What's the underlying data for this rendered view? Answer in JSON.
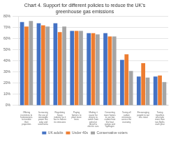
{
  "chart_data": {
    "type": "bar",
    "title": "Chart 4. Support for different policies to reduce the UK’s\ngreenhouse gas emissions",
    "categories": [
      "Offering\nincentives to\nhomeowners\nto insulate\ntheir\nproperties",
      "Increasing\nthe use of\nrenewable\npower like\nsolar and\nwind farms",
      "Regulating\nheavy\nindustry so it\nhas to reduce\nits emissions",
      "Paying\nfarmers to\nplant more\ntrees",
      "Making it\neasier for\ndrivers to\nswitch from\npetrol or\ndiesel to\nelectric cars",
      "Converting\nmore homes\nto use low\ncarbon heat\nlike heat\npumps and\nhydrogen",
      "Taxing all\ncarbon\nemissions\nacross the\neconomy",
      "Encouraging\npeople to eat\nless meat",
      "Taxing\ntravellers\nwho take\nmore than\ntwo flights\neach year"
    ],
    "series": [
      {
        "name": "UK adults",
        "color": "#4472C4",
        "values": [
          75,
          74,
          74,
          67,
          65,
          65,
          41,
          26,
          26
        ]
      },
      {
        "name": "Under 40s",
        "color": "#ED7D31",
        "values": [
          71,
          72,
          66,
          67,
          65,
          62,
          46,
          38,
          27
        ]
      },
      {
        "name": "Conservative voters",
        "color": "#A5A5A5",
        "values": [
          76,
          71,
          71,
          67,
          64,
          62,
          31,
          25,
          21
        ]
      }
    ],
    "ylim": [
      0,
      80
    ],
    "yticks": [
      {
        "value": 0,
        "label": "0%"
      },
      {
        "value": 10,
        "label": "10%"
      },
      {
        "value": 20,
        "label": "20%"
      },
      {
        "value": 30,
        "label": "30%"
      },
      {
        "value": 40,
        "label": "40%"
      },
      {
        "value": 50,
        "label": "50%"
      },
      {
        "value": 60,
        "label": "60%"
      },
      {
        "value": 70,
        "label": "70%"
      },
      {
        "value": 80,
        "label": "80%"
      }
    ],
    "grid": true,
    "legend": "bottom"
  }
}
